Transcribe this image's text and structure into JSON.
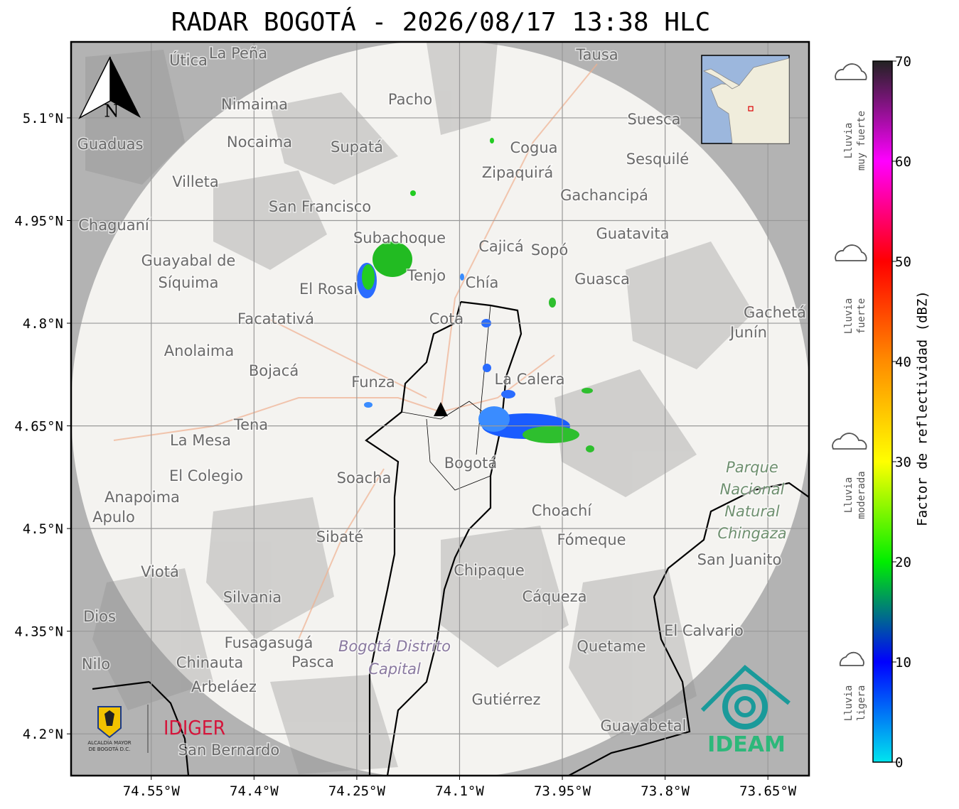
{
  "title": "RADAR BOGOTÁ - 2026/08/17 13:38 HLC",
  "map": {
    "xlim": [
      -74.667,
      -73.59
    ],
    "ylim": [
      4.139,
      5.211
    ],
    "xticks": [
      {
        "value": -74.55,
        "label": "74.55°W"
      },
      {
        "value": -74.4,
        "label": "74.4°W"
      },
      {
        "value": -74.25,
        "label": "74.25°W"
      },
      {
        "value": -74.1,
        "label": "74.1°W"
      },
      {
        "value": -73.95,
        "label": "73.95°W"
      },
      {
        "value": -73.8,
        "label": "73.8°W"
      },
      {
        "value": -73.65,
        "label": "73.65°W"
      }
    ],
    "yticks": [
      {
        "value": 5.1,
        "label": "5.1°N"
      },
      {
        "value": 4.95,
        "label": "4.95°N"
      },
      {
        "value": 4.8,
        "label": "4.8°N"
      },
      {
        "value": 4.65,
        "label": "4.65°N"
      },
      {
        "value": 4.5,
        "label": "4.5°N"
      },
      {
        "value": 4.35,
        "label": "4.35°N"
      },
      {
        "value": 4.2,
        "label": "4.2°N"
      }
    ],
    "grid": true,
    "compass": "N",
    "places": [
      "La Peña",
      "Útica",
      "Tausa",
      "Pacho",
      "Nimaima",
      "Nocaima",
      "Supatá",
      "Guaduas",
      "Suesca",
      "Cogua",
      "Zipaquirá",
      "Sesquilé",
      "Villeta",
      "Gachancipá",
      "San Francisco",
      "Chaguaní",
      "Subachoque",
      "Guatavita",
      "Cajicá",
      "Sopó",
      "Guayabal de",
      "Síquima",
      "Tenjo",
      "El Rosal",
      "Chía",
      "Guasca",
      "Facatativá",
      "Cota",
      "Gachetá",
      "Junín",
      "Anolaima",
      "Bojacá",
      "Funza",
      "La Calera",
      "Tena",
      "La Mesa",
      "El Colegio",
      "Soacha",
      "Bogotá",
      "Anapoima",
      "Apulo",
      "Choachí",
      "Sibaté",
      "Fómeque",
      "San Juanito",
      "Viotá",
      "Chipaque",
      "Silvania",
      "Cáqueza",
      "Dios",
      "El Calvario",
      "Fusagasugá",
      "Quetame",
      "Nilo",
      "Chinauta",
      "Pasca",
      "Arbeláez",
      "Gutiérrez",
      "Guayabetal",
      "San Bernardo"
    ],
    "district_label": [
      "Bogotá Distrito",
      "Capital"
    ],
    "park_label": [
      "Parque",
      "Nacional",
      "Natural",
      "Chingaza"
    ]
  },
  "colorbar": {
    "label": "Factor de reflectividad (dBZ)",
    "clim": [
      0,
      70
    ],
    "ticks": [
      0,
      10,
      20,
      30,
      40,
      50,
      60,
      70
    ],
    "colors": [
      "#00e5ee",
      "#0000ff",
      "#00ee00",
      "#ffff00",
      "#ff8c00",
      "#ff0000",
      "#ff00ff",
      "#222222"
    ],
    "categories": [
      [
        "Lluvia",
        "muy fuerte"
      ],
      [
        "Lluvia",
        "fuerte"
      ],
      [
        "Lluvia",
        "moderada"
      ],
      [
        "Lluvia",
        "ligera"
      ]
    ]
  },
  "logos": {
    "alcaldia": [
      "ALCALDÍA MAYOR",
      "DE BOGOTÁ D.C."
    ],
    "idiger": "IDIGER",
    "ideam": "IDEAM"
  }
}
